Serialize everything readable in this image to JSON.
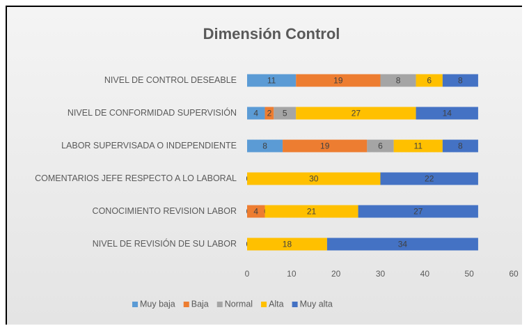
{
  "chart_data": {
    "type": "stacked-barh",
    "title": "Dimensión Control",
    "categories": [
      "NIVEL DE CONTROL DESEABLE",
      "NIVEL DE CONFORMIDAD SUPERVISIÓN",
      "LABOR SUPERVISADA O INDEPENDIENTE",
      "COMENTARIOS JEFE RESPECTO A LO LABORAL",
      "CONOCIMIENTO REVISION LABOR",
      "NIVEL DE REVISIÓN DE SU LABOR"
    ],
    "series": [
      {
        "name": "Muy baja",
        "color": "#5b9bd5",
        "values": [
          11,
          4,
          8,
          0,
          0,
          0
        ]
      },
      {
        "name": "Baja",
        "color": "#ed7d31",
        "values": [
          19,
          2,
          19,
          0,
          4,
          0
        ]
      },
      {
        "name": "Normal",
        "color": "#a5a5a5",
        "values": [
          8,
          5,
          6,
          0,
          0,
          0
        ]
      },
      {
        "name": "Alta",
        "color": "#ffc000",
        "values": [
          6,
          27,
          11,
          30,
          21,
          18
        ]
      },
      {
        "name": "Muy alta",
        "color": "#4472c4",
        "values": [
          8,
          14,
          8,
          22,
          27,
          34
        ]
      }
    ],
    "xlim": [
      0,
      60
    ],
    "xticks": [
      0,
      10,
      20,
      30,
      40,
      50,
      60
    ],
    "grid": false,
    "legend": "bottom"
  }
}
